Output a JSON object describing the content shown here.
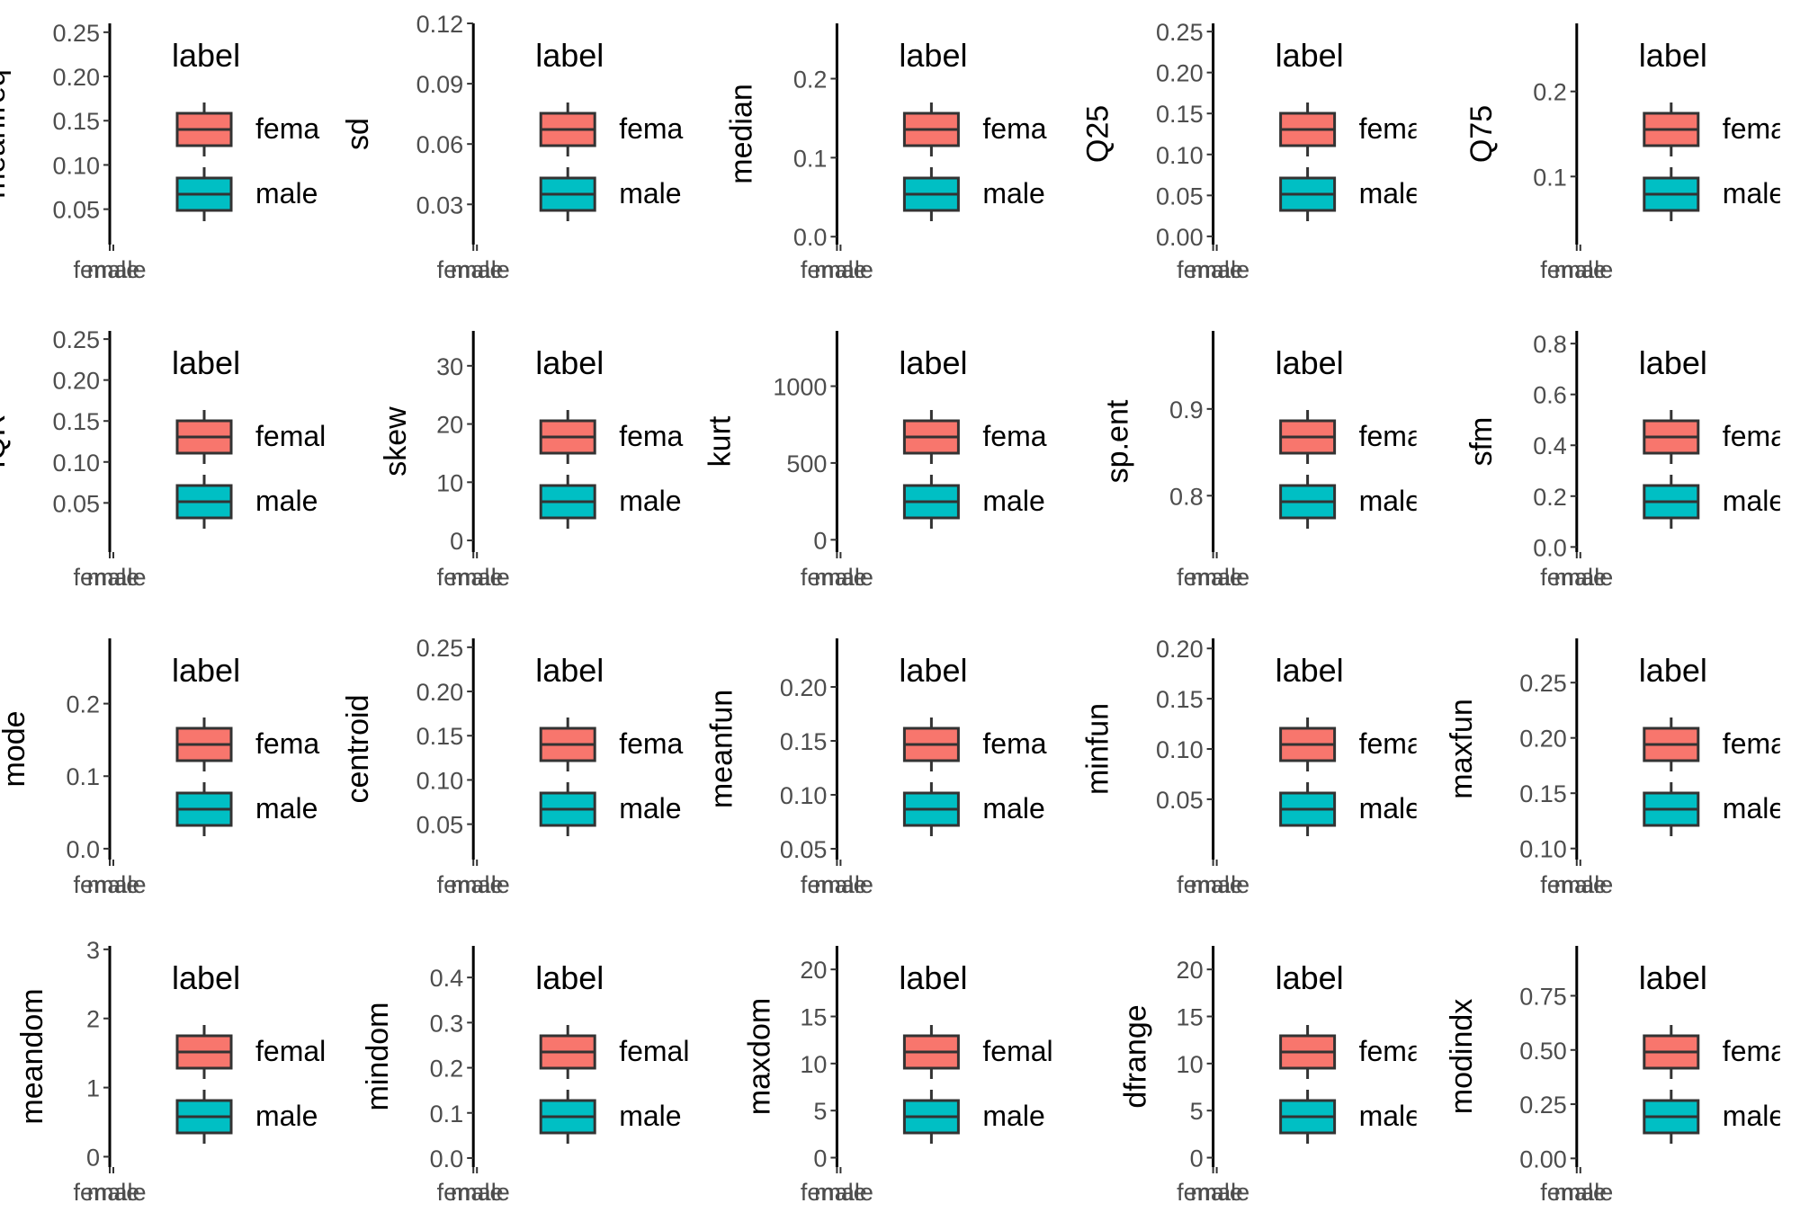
{
  "legend_colors": {
    "female": "#F8766D",
    "male": "#00BFC4"
  },
  "chart_data": [
    {
      "type": "boxplot",
      "ylabel": "meanfreq",
      "categories": [
        "female",
        "male"
      ],
      "ylim": [
        0.01,
        0.26
      ],
      "yticks": [
        0.05,
        0.1,
        0.15,
        0.2,
        0.25
      ],
      "decimals": 2,
      "legend_title": "label",
      "legend_labels": [
        "fema",
        "male"
      ],
      "legend_position": "right"
    },
    {
      "type": "boxplot",
      "ylabel": "sd",
      "categories": [
        "female",
        "male"
      ],
      "ylim": [
        0.01,
        0.12
      ],
      "yticks": [
        0.03,
        0.06,
        0.09,
        0.12
      ],
      "decimals": 2,
      "legend_title": "label",
      "legend_labels": [
        "fema",
        "male"
      ],
      "legend_position": "right"
    },
    {
      "type": "boxplot",
      "ylabel": "median",
      "categories": [
        "female",
        "male"
      ],
      "ylim": [
        -0.01,
        0.27
      ],
      "yticks": [
        0.0,
        0.1,
        0.2
      ],
      "decimals": 1,
      "legend_title": "label",
      "legend_labels": [
        "fema",
        "male"
      ],
      "legend_position": "right"
    },
    {
      "type": "boxplot",
      "ylabel": "Q25",
      "categories": [
        "female",
        "male"
      ],
      "ylim": [
        -0.01,
        0.26
      ],
      "yticks": [
        0.0,
        0.05,
        0.1,
        0.15,
        0.2,
        0.25
      ],
      "decimals": 2,
      "legend_title": "label",
      "legend_labels": [
        "fema",
        "male"
      ],
      "legend_position": "right"
    },
    {
      "type": "boxplot",
      "ylabel": "Q75",
      "categories": [
        "female",
        "male"
      ],
      "ylim": [
        0.02,
        0.28
      ],
      "yticks": [
        0.1,
        0.2
      ],
      "decimals": 1,
      "legend_title": "label",
      "legend_labels": [
        "female",
        "male"
      ],
      "legend_position": "right"
    },
    {
      "type": "boxplot",
      "ylabel": "IQR",
      "categories": [
        "female",
        "male"
      ],
      "ylim": [
        -0.01,
        0.26
      ],
      "yticks": [
        0.05,
        0.1,
        0.15,
        0.2,
        0.25
      ],
      "decimals": 2,
      "legend_title": "label",
      "legend_labels": [
        "femal",
        "male"
      ],
      "legend_position": "right"
    },
    {
      "type": "boxplot",
      "ylabel": "skew",
      "categories": [
        "female",
        "male"
      ],
      "ylim": [
        -2,
        36
      ],
      "yticks": [
        0,
        10,
        20,
        30
      ],
      "decimals": 0,
      "legend_title": "label",
      "legend_labels": [
        "fema",
        "male"
      ],
      "legend_position": "right"
    },
    {
      "type": "boxplot",
      "ylabel": "kurt",
      "categories": [
        "female",
        "male"
      ],
      "ylim": [
        -80,
        1360
      ],
      "yticks": [
        0,
        500,
        1000
      ],
      "decimals": 0,
      "legend_title": "label",
      "legend_labels": [
        "fema",
        "male"
      ],
      "legend_position": "right"
    },
    {
      "type": "boxplot",
      "ylabel": "sp.ent",
      "categories": [
        "female",
        "male"
      ],
      "ylim": [
        0.735,
        0.99
      ],
      "yticks": [
        0.8,
        0.9
      ],
      "decimals": 1,
      "legend_title": "label",
      "legend_labels": [
        "femal",
        "male"
      ],
      "legend_position": "right"
    },
    {
      "type": "boxplot",
      "ylabel": "sfm",
      "categories": [
        "female",
        "male"
      ],
      "ylim": [
        -0.02,
        0.85
      ],
      "yticks": [
        0.0,
        0.2,
        0.4,
        0.6,
        0.8
      ],
      "decimals": 1,
      "legend_title": "label",
      "legend_labels": [
        "female",
        "male"
      ],
      "legend_position": "right"
    },
    {
      "type": "boxplot",
      "ylabel": "mode",
      "categories": [
        "female",
        "male"
      ],
      "ylim": [
        -0.015,
        0.29
      ],
      "yticks": [
        0.0,
        0.1,
        0.2
      ],
      "decimals": 1,
      "legend_title": "label",
      "legend_labels": [
        "fema",
        "male"
      ],
      "legend_position": "right"
    },
    {
      "type": "boxplot",
      "ylabel": "centroid",
      "categories": [
        "female",
        "male"
      ],
      "ylim": [
        0.01,
        0.26
      ],
      "yticks": [
        0.05,
        0.1,
        0.15,
        0.2,
        0.25
      ],
      "decimals": 2,
      "legend_title": "label",
      "legend_labels": [
        "fema",
        "male"
      ],
      "legend_position": "right"
    },
    {
      "type": "boxplot",
      "ylabel": "meanfun",
      "categories": [
        "female",
        "male"
      ],
      "ylim": [
        0.04,
        0.245
      ],
      "yticks": [
        0.05,
        0.1,
        0.15,
        0.2
      ],
      "decimals": 2,
      "legend_title": "label",
      "legend_labels": [
        "fema",
        "male"
      ],
      "legend_position": "right"
    },
    {
      "type": "boxplot",
      "ylabel": "minfun",
      "categories": [
        "female",
        "male"
      ],
      "ylim": [
        -0.01,
        0.21
      ],
      "yticks": [
        0.05,
        0.1,
        0.15,
        0.2
      ],
      "decimals": 2,
      "legend_title": "label",
      "legend_labels": [
        "fema",
        "male"
      ],
      "legend_position": "right"
    },
    {
      "type": "boxplot",
      "ylabel": "maxfun",
      "categories": [
        "female",
        "male"
      ],
      "ylim": [
        0.09,
        0.29
      ],
      "yticks": [
        0.1,
        0.15,
        0.2,
        0.25
      ],
      "decimals": 2,
      "legend_title": "label",
      "legend_labels": [
        "female",
        "male"
      ],
      "legend_position": "right"
    },
    {
      "type": "boxplot",
      "ylabel": "meandom",
      "categories": [
        "female",
        "male"
      ],
      "ylim": [
        -0.15,
        3.05
      ],
      "yticks": [
        0,
        1,
        2,
        3
      ],
      "decimals": 0,
      "legend_title": "label",
      "legend_labels": [
        "female",
        "male"
      ],
      "legend_position": "right"
    },
    {
      "type": "boxplot",
      "ylabel": "mindom",
      "categories": [
        "female",
        "male"
      ],
      "ylim": [
        -0.02,
        0.47
      ],
      "yticks": [
        0.0,
        0.1,
        0.2,
        0.3,
        0.4
      ],
      "decimals": 1,
      "legend_title": "label",
      "legend_labels": [
        "female",
        "male"
      ],
      "legend_position": "right"
    },
    {
      "type": "boxplot",
      "ylabel": "maxdom",
      "categories": [
        "female",
        "male"
      ],
      "ylim": [
        -1,
        22.5
      ],
      "yticks": [
        0,
        5,
        10,
        15,
        20
      ],
      "decimals": 0,
      "legend_title": "label",
      "legend_labels": [
        "female",
        "male"
      ],
      "legend_position": "right"
    },
    {
      "type": "boxplot",
      "ylabel": "dfrange",
      "categories": [
        "female",
        "male"
      ],
      "ylim": [
        -1,
        22.5
      ],
      "yticks": [
        0,
        5,
        10,
        15,
        20
      ],
      "decimals": 0,
      "legend_title": "label",
      "legend_labels": [
        "femal",
        "male"
      ],
      "legend_position": "right"
    },
    {
      "type": "boxplot",
      "ylabel": "modindx",
      "categories": [
        "female",
        "male"
      ],
      "ylim": [
        -0.04,
        0.98
      ],
      "yticks": [
        0.0,
        0.25,
        0.5,
        0.75
      ],
      "decimals": 2,
      "legend_title": "label",
      "legend_labels": [
        "female",
        "male"
      ],
      "legend_position": "right"
    }
  ]
}
